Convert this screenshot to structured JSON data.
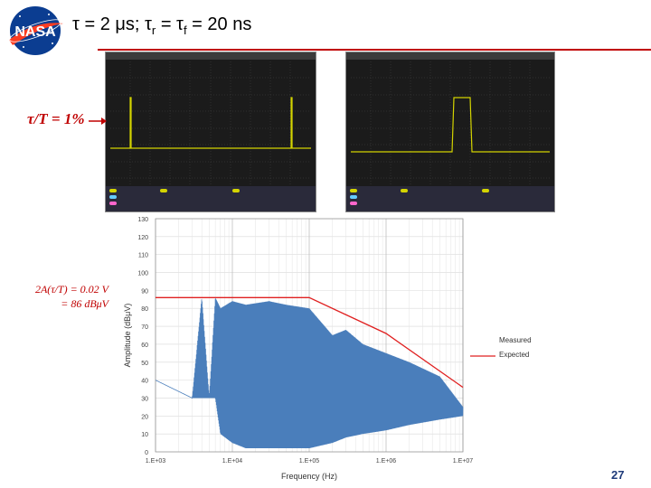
{
  "header": {
    "title_main": "τ = 2 μs; τ",
    "title_sub_r": "r",
    "title_mid": " = τ",
    "title_sub_f": "f",
    "title_tail": "  = 20 ns",
    "logo_text": "NASA"
  },
  "annotations": {
    "duty_cycle": "τ/T = 1%",
    "amplitude_line1": "2A(τ/T) = 0.02 V",
    "amplitude_line2": "= 86 dBμV"
  },
  "colors": {
    "accent": "#c00000",
    "measured": "#4a7ebb",
    "expected": "#e02020",
    "scope_trace": "#d4d400",
    "scope_bg": "#1b1b1b"
  },
  "footer": {
    "page_number": "27"
  },
  "chart_data": {
    "type": "line",
    "xlabel": "Frequency (Hz)",
    "ylabel": "Amplitude (dBμV)",
    "xscale": "log",
    "xlim": [
      1000,
      10000000
    ],
    "ylim": [
      0,
      130
    ],
    "x_tick_labels": [
      "1.E+03",
      "1.E+04",
      "1.E+05",
      "1.E+06",
      "1.E+07"
    ],
    "y_ticks": [
      0,
      10,
      20,
      30,
      40,
      50,
      60,
      70,
      80,
      90,
      100,
      110,
      120,
      130
    ],
    "grid": true,
    "legend_position": "right",
    "series": [
      {
        "name": "Measured",
        "style": "dense-oscillating",
        "envelope_x": [
          1000,
          3000,
          4000,
          5000,
          6000,
          7000,
          10000,
          15000,
          30000,
          50000,
          100000,
          200000,
          300000,
          500000,
          1000000,
          2000000,
          5000000,
          10000000
        ],
        "envelope_top": [
          40,
          30,
          86,
          30,
          86,
          80,
          84,
          82,
          84,
          82,
          80,
          65,
          68,
          60,
          55,
          50,
          42,
          25
        ],
        "envelope_bottom": [
          40,
          30,
          30,
          30,
          30,
          10,
          5,
          2,
          2,
          2,
          2,
          5,
          8,
          10,
          12,
          15,
          18,
          20
        ]
      },
      {
        "name": "Expected",
        "x": [
          1000,
          100000,
          1000000,
          10000000
        ],
        "y": [
          86,
          86,
          66,
          36
        ]
      }
    ]
  }
}
